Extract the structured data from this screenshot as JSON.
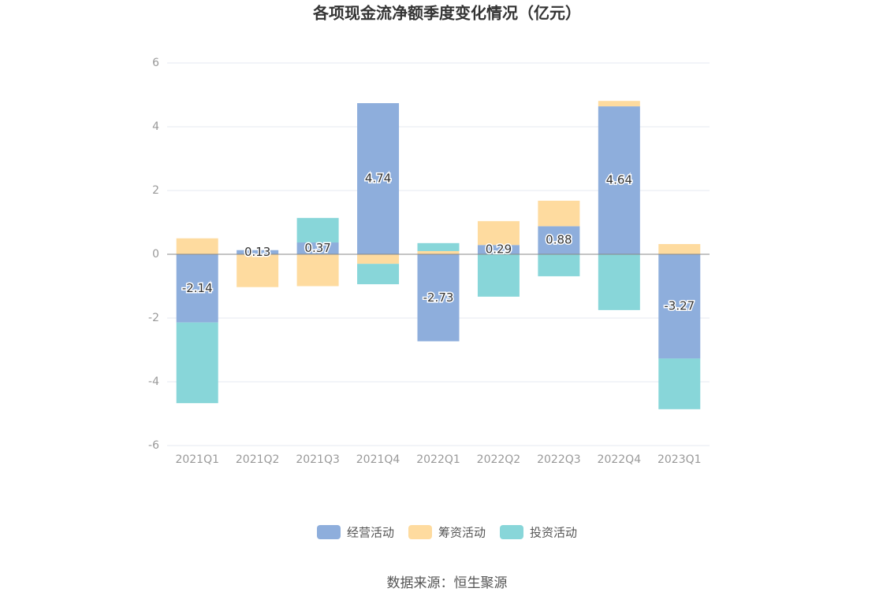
{
  "chart_data": {
    "type": "stacked_bar",
    "title": "各项现金流净额季度变化情况（亿元）",
    "categories": [
      "2021Q1",
      "2021Q2",
      "2021Q3",
      "2021Q4",
      "2022Q1",
      "2022Q2",
      "2022Q3",
      "2022Q4",
      "2023Q1"
    ],
    "series": [
      {
        "name": "经营活动",
        "color": "#8eaedc",
        "values": [
          -2.14,
          0.13,
          0.37,
          4.74,
          -2.73,
          0.29,
          0.88,
          4.64,
          -3.27
        ],
        "labels": true
      },
      {
        "name": "筹资活动",
        "color": "#fedb9f",
        "values": [
          0.5,
          -1.03,
          -1.0,
          -0.3,
          0.1,
          0.75,
          0.8,
          0.17,
          0.32
        ]
      },
      {
        "name": "投资活动",
        "color": "#88d6d9",
        "values": [
          -2.53,
          0,
          0.77,
          -0.64,
          0.25,
          -1.33,
          -0.69,
          -1.75,
          -1.59
        ]
      }
    ],
    "ylim": [
      -6,
      6
    ],
    "yticks": [
      -6,
      -4,
      -2,
      0,
      2,
      4,
      6
    ],
    "grid": true,
    "source": "数据来源：恒生聚源"
  }
}
